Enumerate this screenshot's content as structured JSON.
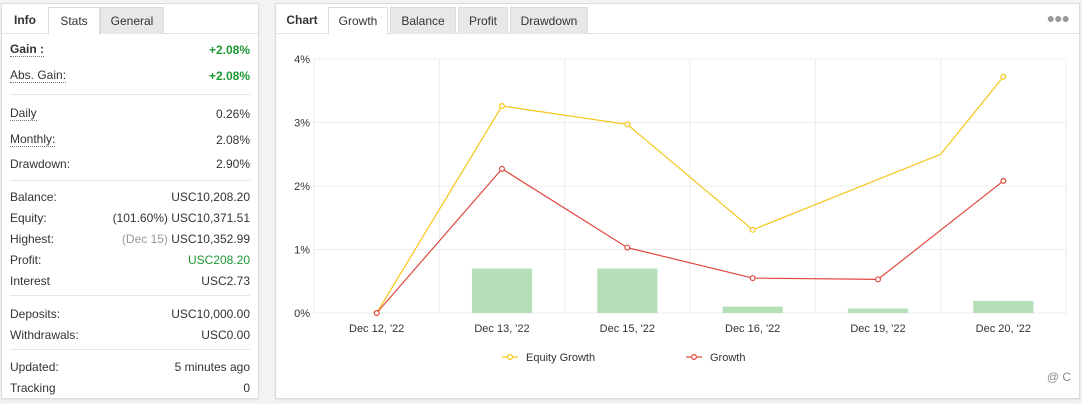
{
  "left": {
    "tabs": [
      "Info",
      "Stats",
      "General"
    ],
    "active_tab": "Stats",
    "rows": [
      {
        "label": "Gain :",
        "value": "+2.08%",
        "style": "green-bold",
        "label_style": "bold-dotted"
      },
      {
        "label": "Abs. Gain:",
        "value": "+2.08%",
        "style": "green-bold",
        "label_style": "dotted"
      },
      {
        "label": "Daily",
        "value": "0.26%",
        "label_style": "dotted"
      },
      {
        "label": "Monthly:",
        "value": "2.08%",
        "label_style": "dotted"
      },
      {
        "label": "Drawdown:",
        "value": "2.90%"
      },
      {
        "label": "Balance:",
        "value": "USC10,208.20"
      },
      {
        "label": "Equity:",
        "value": "USC10,371.51",
        "prefix": "(101.60%)"
      },
      {
        "label": "Highest:",
        "value": "USC10,352.99",
        "prefix": "(Dec 15)",
        "prefix_muted": true
      },
      {
        "label": "Profit:",
        "value": "USC208.20",
        "style": "green"
      },
      {
        "label": "Interest",
        "value": "USC2.73"
      },
      {
        "label": "Deposits:",
        "value": "USC10,000.00"
      },
      {
        "label": "Withdrawals:",
        "value": "USC0.00"
      },
      {
        "label": "Updated:",
        "value": "5 minutes ago"
      },
      {
        "label": "Tracking",
        "value": "0"
      }
    ]
  },
  "right": {
    "tabs": [
      "Chart",
      "Growth",
      "Balance",
      "Profit",
      "Drawdown"
    ],
    "active_tab": "Growth",
    "menu_icon": "ellipsis-icon",
    "watermark": "@ C"
  },
  "colors": {
    "equity": "#f5c518",
    "growth": "#e0473c",
    "bar": "#b5dfb6",
    "grid": "#ececec",
    "gain": "#1e9a34"
  },
  "chart_data": {
    "type": "line",
    "categories": [
      "Dec 12, '22",
      "Dec 13, '22",
      "Dec 15, '22",
      "Dec 16, '22",
      "Dec 19, '22",
      "Dec 20, '22"
    ],
    "y_ticks": [
      "0%",
      "1%",
      "2%",
      "3%",
      "4%"
    ],
    "ylim": [
      0,
      4
    ],
    "grid": true,
    "legend_position": "bottom",
    "series": [
      {
        "name": "Equity Growth",
        "values": [
          0,
          3.26,
          2.97,
          1.31,
          2.5,
          3.72
        ],
        "x_index": [
          0,
          1,
          2,
          3,
          4.5,
          5
        ]
      },
      {
        "name": "Growth",
        "values": [
          0,
          2.27,
          1.03,
          0.55,
          0.53,
          2.08
        ]
      }
    ],
    "bars": {
      "values": [
        0,
        0.7,
        0.7,
        0.1,
        0.07,
        0.19
      ]
    }
  }
}
